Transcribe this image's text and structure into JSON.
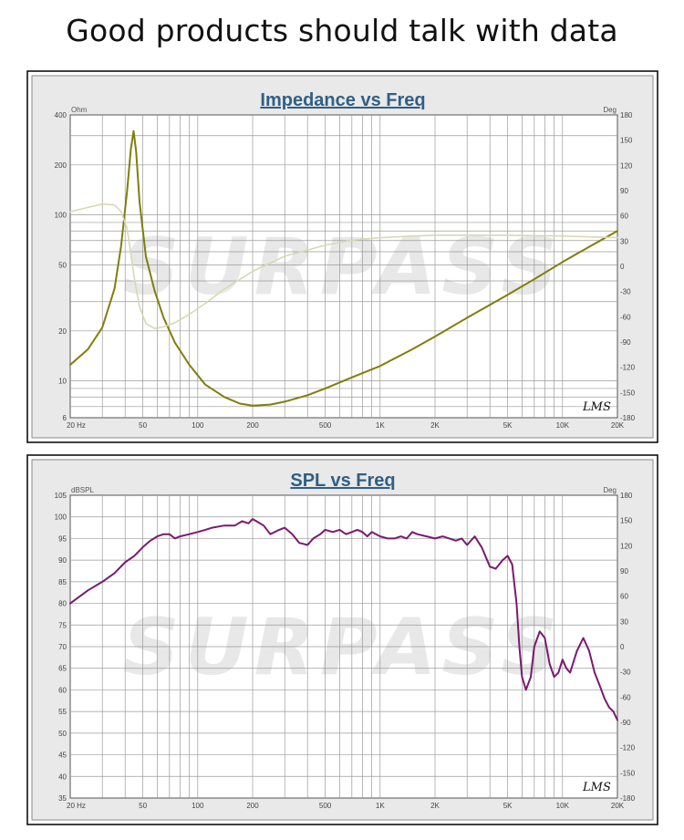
{
  "headline": "Good products should talk with data",
  "chart_data": [
    {
      "type": "line",
      "title": "Impedance vs Freq",
      "y_unit_label": "Ohm",
      "y2_unit_label": "Deg",
      "x_scale": "log",
      "y_scale": "log",
      "xlim": [
        20,
        20000
      ],
      "ylim": [
        6,
        400
      ],
      "y2lim": [
        -180,
        180
      ],
      "x_ticks": [
        20,
        50,
        100,
        200,
        500,
        1000,
        2000,
        5000,
        10000,
        20000
      ],
      "x_tick_labels": [
        "20 Hz",
        "50",
        "100",
        "200",
        "500",
        "1K",
        "2K",
        "5K",
        "10K",
        "20K"
      ],
      "y_ticks": [
        6,
        10,
        20,
        50,
        100,
        200,
        400
      ],
      "y_tick_labels": [
        "6",
        "10",
        "20",
        "50",
        "100",
        "200",
        "400"
      ],
      "y2_ticks": [
        -180,
        -150,
        -120,
        -90,
        -60,
        -30,
        0,
        30,
        60,
        90,
        120,
        150,
        180
      ],
      "y2_tick_labels": [
        "-180",
        "-150",
        "-120",
        "-90",
        "-60",
        "-30",
        "0",
        "30",
        "60",
        "90",
        "120",
        "150",
        "180"
      ],
      "grid": true,
      "watermark": "SURPASS",
      "logo": "LMS",
      "colors": {
        "primary": "#7f7f0a",
        "secondary": "#d8d8b4"
      },
      "series": [
        {
          "axis": "left",
          "x": [
            20,
            25,
            30,
            35,
            38,
            41,
            43,
            44.5,
            46,
            48,
            52,
            58,
            65,
            75,
            90,
            110,
            140,
            170,
            200,
            250,
            300,
            400,
            500,
            700,
            1000,
            1500,
            2000,
            3000,
            5000,
            7000,
            10000,
            15000,
            20000
          ],
          "values": [
            12.5,
            15.5,
            21,
            36,
            65,
            140,
            250,
            320,
            240,
            120,
            56,
            35,
            24,
            17,
            12.5,
            9.5,
            8,
            7.3,
            7.1,
            7.2,
            7.5,
            8.2,
            9,
            10.5,
            12.3,
            15.5,
            18.5,
            24,
            33,
            41,
            52,
            67,
            80
          ]
        },
        {
          "axis": "right",
          "x": [
            20,
            25,
            30,
            35,
            38,
            41,
            43,
            45,
            48,
            52,
            58,
            65,
            75,
            90,
            110,
            140,
            200,
            300,
            500,
            700,
            1000,
            1500,
            2000,
            5000,
            10000,
            20000
          ],
          "values": [
            65,
            70,
            74,
            73,
            65,
            45,
            15,
            -15,
            -48,
            -68,
            -74,
            -72,
            -67,
            -57,
            -44,
            -27,
            -6,
            12,
            25,
            31,
            34,
            36,
            37,
            37,
            36,
            34
          ]
        }
      ]
    },
    {
      "type": "line",
      "title": "SPL vs Freq",
      "y_unit_label": "dBSPL",
      "y2_unit_label": "Deg",
      "x_scale": "log",
      "xlim": [
        20,
        20000
      ],
      "ylim": [
        35,
        105
      ],
      "y2lim": [
        -180,
        180
      ],
      "x_ticks": [
        20,
        50,
        100,
        200,
        500,
        1000,
        2000,
        5000,
        10000,
        20000
      ],
      "x_tick_labels": [
        "20 Hz",
        "50",
        "100",
        "200",
        "500",
        "1K",
        "2K",
        "5K",
        "10K",
        "20K"
      ],
      "y_ticks": [
        35,
        40,
        45,
        50,
        55,
        60,
        65,
        70,
        75,
        80,
        85,
        90,
        95,
        100,
        105
      ],
      "y_tick_labels": [
        "35",
        "40",
        "45",
        "50",
        "55",
        "60",
        "65",
        "70",
        "75",
        "80",
        "85",
        "90",
        "95",
        "100",
        "105"
      ],
      "y2_ticks": [
        -180,
        -150,
        -120,
        -90,
        -60,
        -30,
        0,
        30,
        60,
        90,
        120,
        150,
        180
      ],
      "y2_tick_labels": [
        "-180",
        "-150",
        "-120",
        "-90",
        "-60",
        "-30",
        "0",
        "30",
        "60",
        "90",
        "120",
        "150",
        "180"
      ],
      "grid": true,
      "watermark": "SURPASS",
      "logo": "LMS",
      "colors": {
        "primary": "#7a1a6e"
      },
      "series": [
        {
          "axis": "left",
          "x": [
            20,
            25,
            30,
            35,
            40,
            45,
            50,
            55,
            60,
            65,
            70,
            75,
            80,
            90,
            100,
            110,
            120,
            140,
            160,
            175,
            190,
            200,
            210,
            230,
            250,
            280,
            300,
            330,
            360,
            400,
            430,
            470,
            500,
            550,
            600,
            650,
            700,
            750,
            800,
            850,
            900,
            1000,
            1100,
            1200,
            1300,
            1400,
            1500,
            1600,
            1800,
            2000,
            2200,
            2400,
            2600,
            2800,
            3000,
            3300,
            3600,
            4000,
            4300,
            4700,
            5000,
            5300,
            5600,
            5800,
            6000,
            6300,
            6700,
            7000,
            7500,
            8000,
            8500,
            9000,
            9500,
            10000,
            10500,
            11000,
            12000,
            13000,
            14000,
            15000,
            16000,
            17000,
            18000,
            19000,
            20000
          ],
          "values": [
            80,
            83,
            85,
            87,
            89.5,
            91,
            93,
            94.5,
            95.5,
            96,
            96,
            95,
            95.5,
            96,
            96.5,
            97,
            97.5,
            98,
            98,
            99,
            98.5,
            99.5,
            99,
            98,
            96,
            97,
            97.5,
            96,
            94,
            93.5,
            95,
            96,
            97,
            96.5,
            97,
            96,
            96.5,
            97,
            96.5,
            95.5,
            96.5,
            95.5,
            95,
            95,
            95.5,
            95,
            96.5,
            96,
            95.5,
            95,
            95.5,
            95,
            94.5,
            95,
            93.5,
            95.5,
            93,
            88.5,
            88,
            90,
            91,
            89,
            80,
            70,
            63,
            60,
            63,
            70,
            73.5,
            72,
            66,
            63,
            64,
            67,
            65,
            64,
            69,
            72,
            69,
            64,
            61,
            58,
            56,
            55,
            53
          ]
        }
      ]
    }
  ]
}
